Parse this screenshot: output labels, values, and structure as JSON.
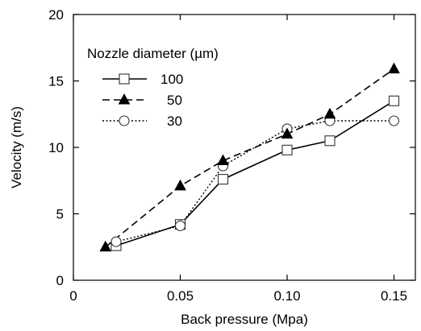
{
  "chart_data": {
    "type": "line",
    "xlabel": "Back pressure (Mpa)",
    "ylabel": "Velocity (m/s)",
    "xlim": [
      0,
      0.16
    ],
    "ylim": [
      0,
      20
    ],
    "x_ticks": [
      0,
      0.05,
      0.1,
      0.15
    ],
    "x_tick_labels": [
      "0",
      "0.05",
      "0.10",
      "0.15"
    ],
    "y_ticks": [
      0,
      5,
      10,
      15,
      20
    ],
    "y_tick_labels": [
      "0",
      "5",
      "10",
      "15",
      "20"
    ],
    "grid": false,
    "legend": {
      "title": "Nozzle diameter (µm)",
      "placement": "top-left"
    },
    "series": [
      {
        "name": "100",
        "marker": "square-open",
        "line_style": "solid",
        "x": [
          0.02,
          0.05,
          0.07,
          0.1,
          0.12,
          0.15
        ],
        "y": [
          2.6,
          4.2,
          7.6,
          9.8,
          10.5,
          13.5
        ]
      },
      {
        "name": "50",
        "marker": "triangle-filled",
        "line_style": "dashed",
        "x": [
          0.015,
          0.05,
          0.07,
          0.1,
          0.12,
          0.15
        ],
        "y": [
          2.5,
          7.1,
          9.0,
          11.0,
          12.5,
          15.9
        ]
      },
      {
        "name": "30",
        "marker": "circle-open",
        "line_style": "dotted",
        "x": [
          0.02,
          0.05,
          0.07,
          0.1,
          0.12,
          0.15
        ],
        "y": [
          2.9,
          4.1,
          8.6,
          11.4,
          12.0,
          12.0
        ]
      }
    ]
  }
}
